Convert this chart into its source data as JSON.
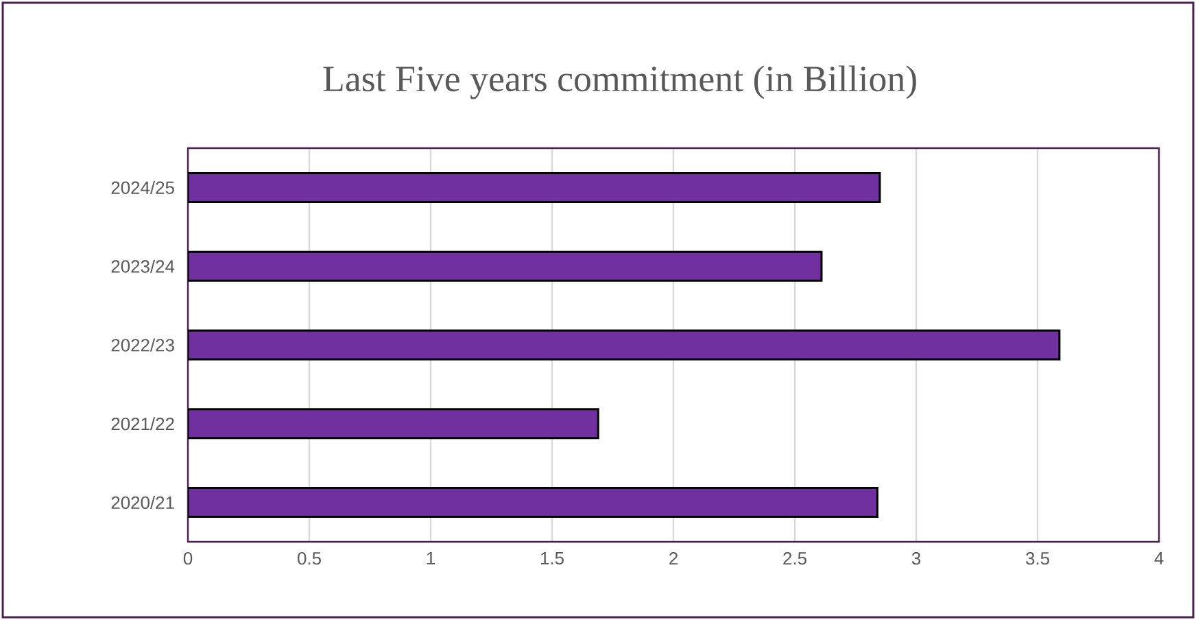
{
  "chart_data": {
    "type": "bar",
    "orientation": "horizontal",
    "title": "Last Five years commitment (in Billion)",
    "categories": [
      "2024/25",
      "2023/24",
      "2022/23",
      "2021/22",
      "2020/21"
    ],
    "values": [
      2.85,
      2.61,
      3.59,
      1.69,
      2.84
    ],
    "color": "#7030a0",
    "xlim": [
      0,
      4
    ],
    "xticks": [
      0,
      0.5,
      1,
      1.5,
      2,
      2.5,
      3,
      3.5,
      4
    ],
    "grid": "x"
  }
}
